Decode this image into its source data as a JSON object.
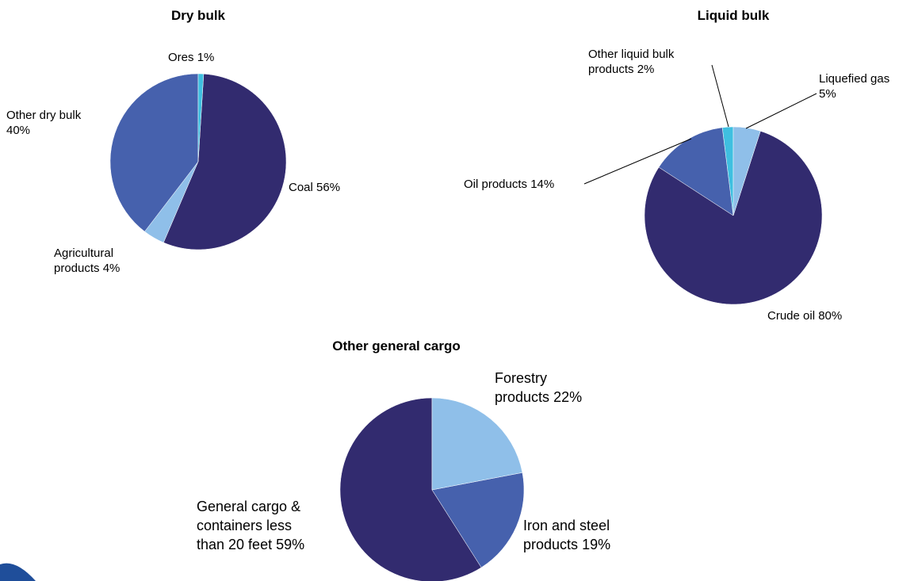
{
  "chart_data": [
    {
      "type": "pie",
      "title": "Dry bulk",
      "categories": [
        "Ores",
        "Coal",
        "Agricultural products",
        "Other dry bulk"
      ],
      "values": [
        1,
        56,
        4,
        40
      ],
      "value_labels": [
        "1%",
        "56%",
        "4%",
        "40%"
      ],
      "colors": [
        "#3fbfe0",
        "#322b6f",
        "#8fbfe9",
        "#4661ad"
      ]
    },
    {
      "type": "pie",
      "title": "Liquid bulk",
      "categories": [
        "Liquefied gas",
        "Crude oil",
        "Oil products",
        "Other liquid bulk products"
      ],
      "values": [
        5,
        80,
        14,
        2
      ],
      "value_labels": [
        "5%",
        "80%",
        "14%",
        "2%"
      ],
      "colors": [
        "#8fbfe9",
        "#322b6f",
        "#4661ad",
        "#3fbfe0"
      ]
    },
    {
      "type": "pie",
      "title": "Other general cargo",
      "categories": [
        "Forestry products",
        "Iron and steel products",
        "General cargo & containers less than 20 feet"
      ],
      "values": [
        22,
        19,
        59
      ],
      "value_labels": [
        "22%",
        "19%",
        "59%"
      ],
      "colors": [
        "#8fbfe9",
        "#4661ad",
        "#322b6f"
      ]
    }
  ]
}
